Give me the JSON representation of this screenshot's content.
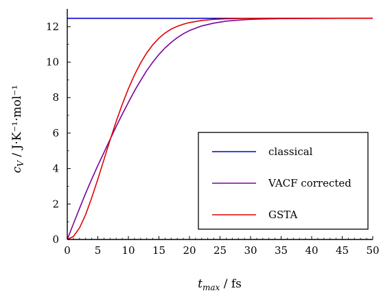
{
  "chart_data": {
    "type": "line",
    "xlabel": "t_max / fs",
    "xlabel_main": "t",
    "xlabel_sub": "max",
    "xlabel_unit": " / fs",
    "ylabel": "cV / J·K⁻¹·mol⁻¹",
    "ylabel_main": "c",
    "ylabel_sub": "V",
    "ylabel_unit": " / J·K⁻¹·mol⁻¹",
    "xlim": [
      0,
      50
    ],
    "ylim": [
      0,
      13
    ],
    "xticks": [
      0,
      5,
      10,
      15,
      20,
      25,
      30,
      35,
      40,
      45,
      50
    ],
    "yticks": [
      0,
      2,
      4,
      6,
      8,
      10,
      12
    ],
    "grid": false,
    "legend_position": "lower-right",
    "series": [
      {
        "name": "classical",
        "color": "#0000cc",
        "x": [
          0,
          50
        ],
        "y": [
          12.47,
          12.47
        ]
      },
      {
        "name": "VACF corrected",
        "color": "#7a0099",
        "x": [
          0,
          1,
          2,
          3,
          4,
          5,
          6,
          7,
          8,
          9,
          10,
          11,
          12,
          13,
          14,
          15,
          16,
          17,
          18,
          19,
          20,
          22,
          24,
          26,
          28,
          30,
          32,
          35,
          40,
          45,
          50
        ],
        "y": [
          0.0,
          0.88,
          1.75,
          2.6,
          3.4,
          4.17,
          4.9,
          5.64,
          6.37,
          7.06,
          7.73,
          8.38,
          8.96,
          9.52,
          10.0,
          10.43,
          10.8,
          11.11,
          11.38,
          11.6,
          11.78,
          12.04,
          12.2,
          12.31,
          12.37,
          12.41,
          12.43,
          12.45,
          12.46,
          12.47,
          12.47
        ]
      },
      {
        "name": "GSTA",
        "color": "#e00000",
        "x": [
          0,
          1,
          2,
          3,
          4,
          5,
          6,
          7,
          8,
          9,
          10,
          11,
          12,
          13,
          14,
          15,
          16,
          17,
          18,
          19,
          20,
          22,
          24,
          26,
          28,
          30,
          32,
          35,
          40,
          45,
          50
        ],
        "y": [
          0.0,
          0.17,
          0.65,
          1.4,
          2.35,
          3.4,
          4.5,
          5.6,
          6.65,
          7.62,
          8.5,
          9.28,
          9.95,
          10.52,
          10.98,
          11.35,
          11.64,
          11.86,
          12.02,
          12.14,
          12.23,
          12.35,
          12.41,
          12.44,
          12.46,
          12.465,
          12.47,
          12.47,
          12.47,
          12.47,
          12.47
        ]
      }
    ]
  }
}
